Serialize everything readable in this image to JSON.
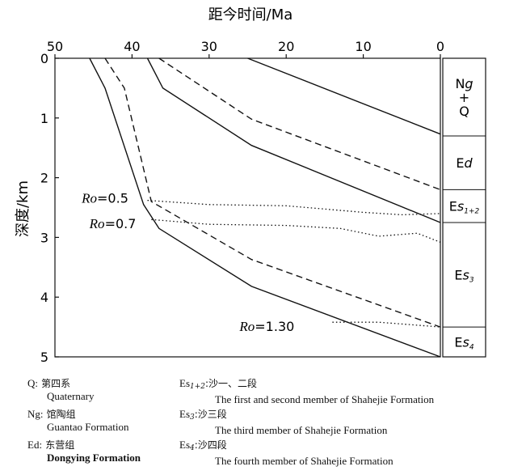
{
  "chart_data": {
    "type": "line",
    "title": "",
    "xlabel": "距今时间/Ma",
    "ylabel": "深度/km",
    "xlim": [
      50,
      0
    ],
    "ylim": [
      0,
      5
    ],
    "x_ticks": [
      "50",
      "40",
      "30",
      "20",
      "10",
      "0"
    ],
    "y_ticks": [
      "0",
      "1",
      "2",
      "3",
      "4",
      "5"
    ],
    "series": [
      {
        "style": "solid",
        "points": [
          [
            45.5,
            0
          ],
          [
            43.5,
            0.5
          ],
          [
            38.5,
            2.45
          ],
          [
            36.5,
            2.85
          ],
          [
            24.5,
            3.82
          ],
          [
            0,
            5.0
          ]
        ]
      },
      {
        "style": "dashed",
        "points": [
          [
            43.5,
            0
          ],
          [
            41.0,
            0.5
          ],
          [
            37.5,
            2.4
          ],
          [
            24.5,
            3.37
          ],
          [
            0,
            4.5
          ]
        ]
      },
      {
        "style": "solid",
        "points": [
          [
            38,
            0
          ],
          [
            36,
            0.5
          ],
          [
            24.5,
            1.46
          ],
          [
            0,
            2.75
          ]
        ]
      },
      {
        "style": "dashed",
        "points": [
          [
            36.5,
            0
          ],
          [
            24.5,
            1.02
          ],
          [
            0,
            2.2
          ]
        ]
      },
      {
        "style": "solid",
        "points": [
          [
            25,
            0
          ],
          [
            0,
            1.27
          ]
        ]
      },
      {
        "style": "dotted",
        "points": [
          [
            38,
            2.38
          ],
          [
            30,
            2.45
          ],
          [
            20,
            2.47
          ],
          [
            10,
            2.58
          ],
          [
            5,
            2.62
          ],
          [
            0,
            2.6
          ]
        ]
      },
      {
        "style": "dotted",
        "points": [
          [
            37.5,
            2.7
          ],
          [
            30,
            2.78
          ],
          [
            20,
            2.8
          ],
          [
            13,
            2.85
          ],
          [
            8,
            2.98
          ],
          [
            3,
            2.93
          ],
          [
            0,
            3.08
          ]
        ]
      },
      {
        "style": "dotted",
        "points": [
          [
            14,
            4.42
          ],
          [
            8,
            4.42
          ],
          [
            4,
            4.46
          ],
          [
            0,
            4.5
          ]
        ]
      }
    ],
    "annotations": [
      {
        "var": "Ro",
        "value": "=0.5",
        "x": 43.5,
        "y": 2.35
      },
      {
        "var": "Ro",
        "value": "=0.7",
        "x": 42.5,
        "y": 2.78
      },
      {
        "var": "Ro",
        "value": "=1.30",
        "x": 22.5,
        "y": 4.5
      }
    ],
    "strata": [
      {
        "top": 0,
        "bottom": 1.3,
        "parts": [
          [
            "Ng",
            "g"
          ],
          [
            "+",
            ""
          ],
          [
            "Q",
            ""
          ]
        ]
      },
      {
        "top": 1.3,
        "bottom": 2.2,
        "parts": [
          [
            "Ed",
            "d"
          ]
        ]
      },
      {
        "top": 2.2,
        "bottom": 2.75,
        "parts": [
          [
            "Es1+2",
            "s",
            "1+2"
          ]
        ]
      },
      {
        "top": 2.75,
        "bottom": 4.5,
        "parts": [
          [
            "Es3",
            "s",
            "3"
          ]
        ]
      },
      {
        "top": 4.5,
        "bottom": 5.0,
        "parts": [
          [
            "Es4",
            "s",
            "4"
          ]
        ]
      }
    ]
  },
  "legend": {
    "q_abbr": "Q:",
    "q_zh": "第四系",
    "q_en": "Quaternary",
    "ng_abbr": "Ng:",
    "ng_zh": "馆陶组",
    "ng_en": "Guantao Formation",
    "ed_abbr": "Ed:",
    "ed_zh": "东营组",
    "ed_en": "Dongying Formation",
    "es12_abbr": "Es",
    "es12_sub": "1+2",
    "es12_zh": ":沙一、二段",
    "es12_en": "The first and second member of Shahejie Formation",
    "es3_abbr": "Es",
    "es3_sub": "3",
    "es3_zh": ":沙三段",
    "es3_en": "The third member of Shahejie Formation",
    "es4_abbr": "Es",
    "es4_sub": "4",
    "es4_zh": ":沙四段",
    "es4_en": "The fourth  member  of Shahejie Formation"
  }
}
